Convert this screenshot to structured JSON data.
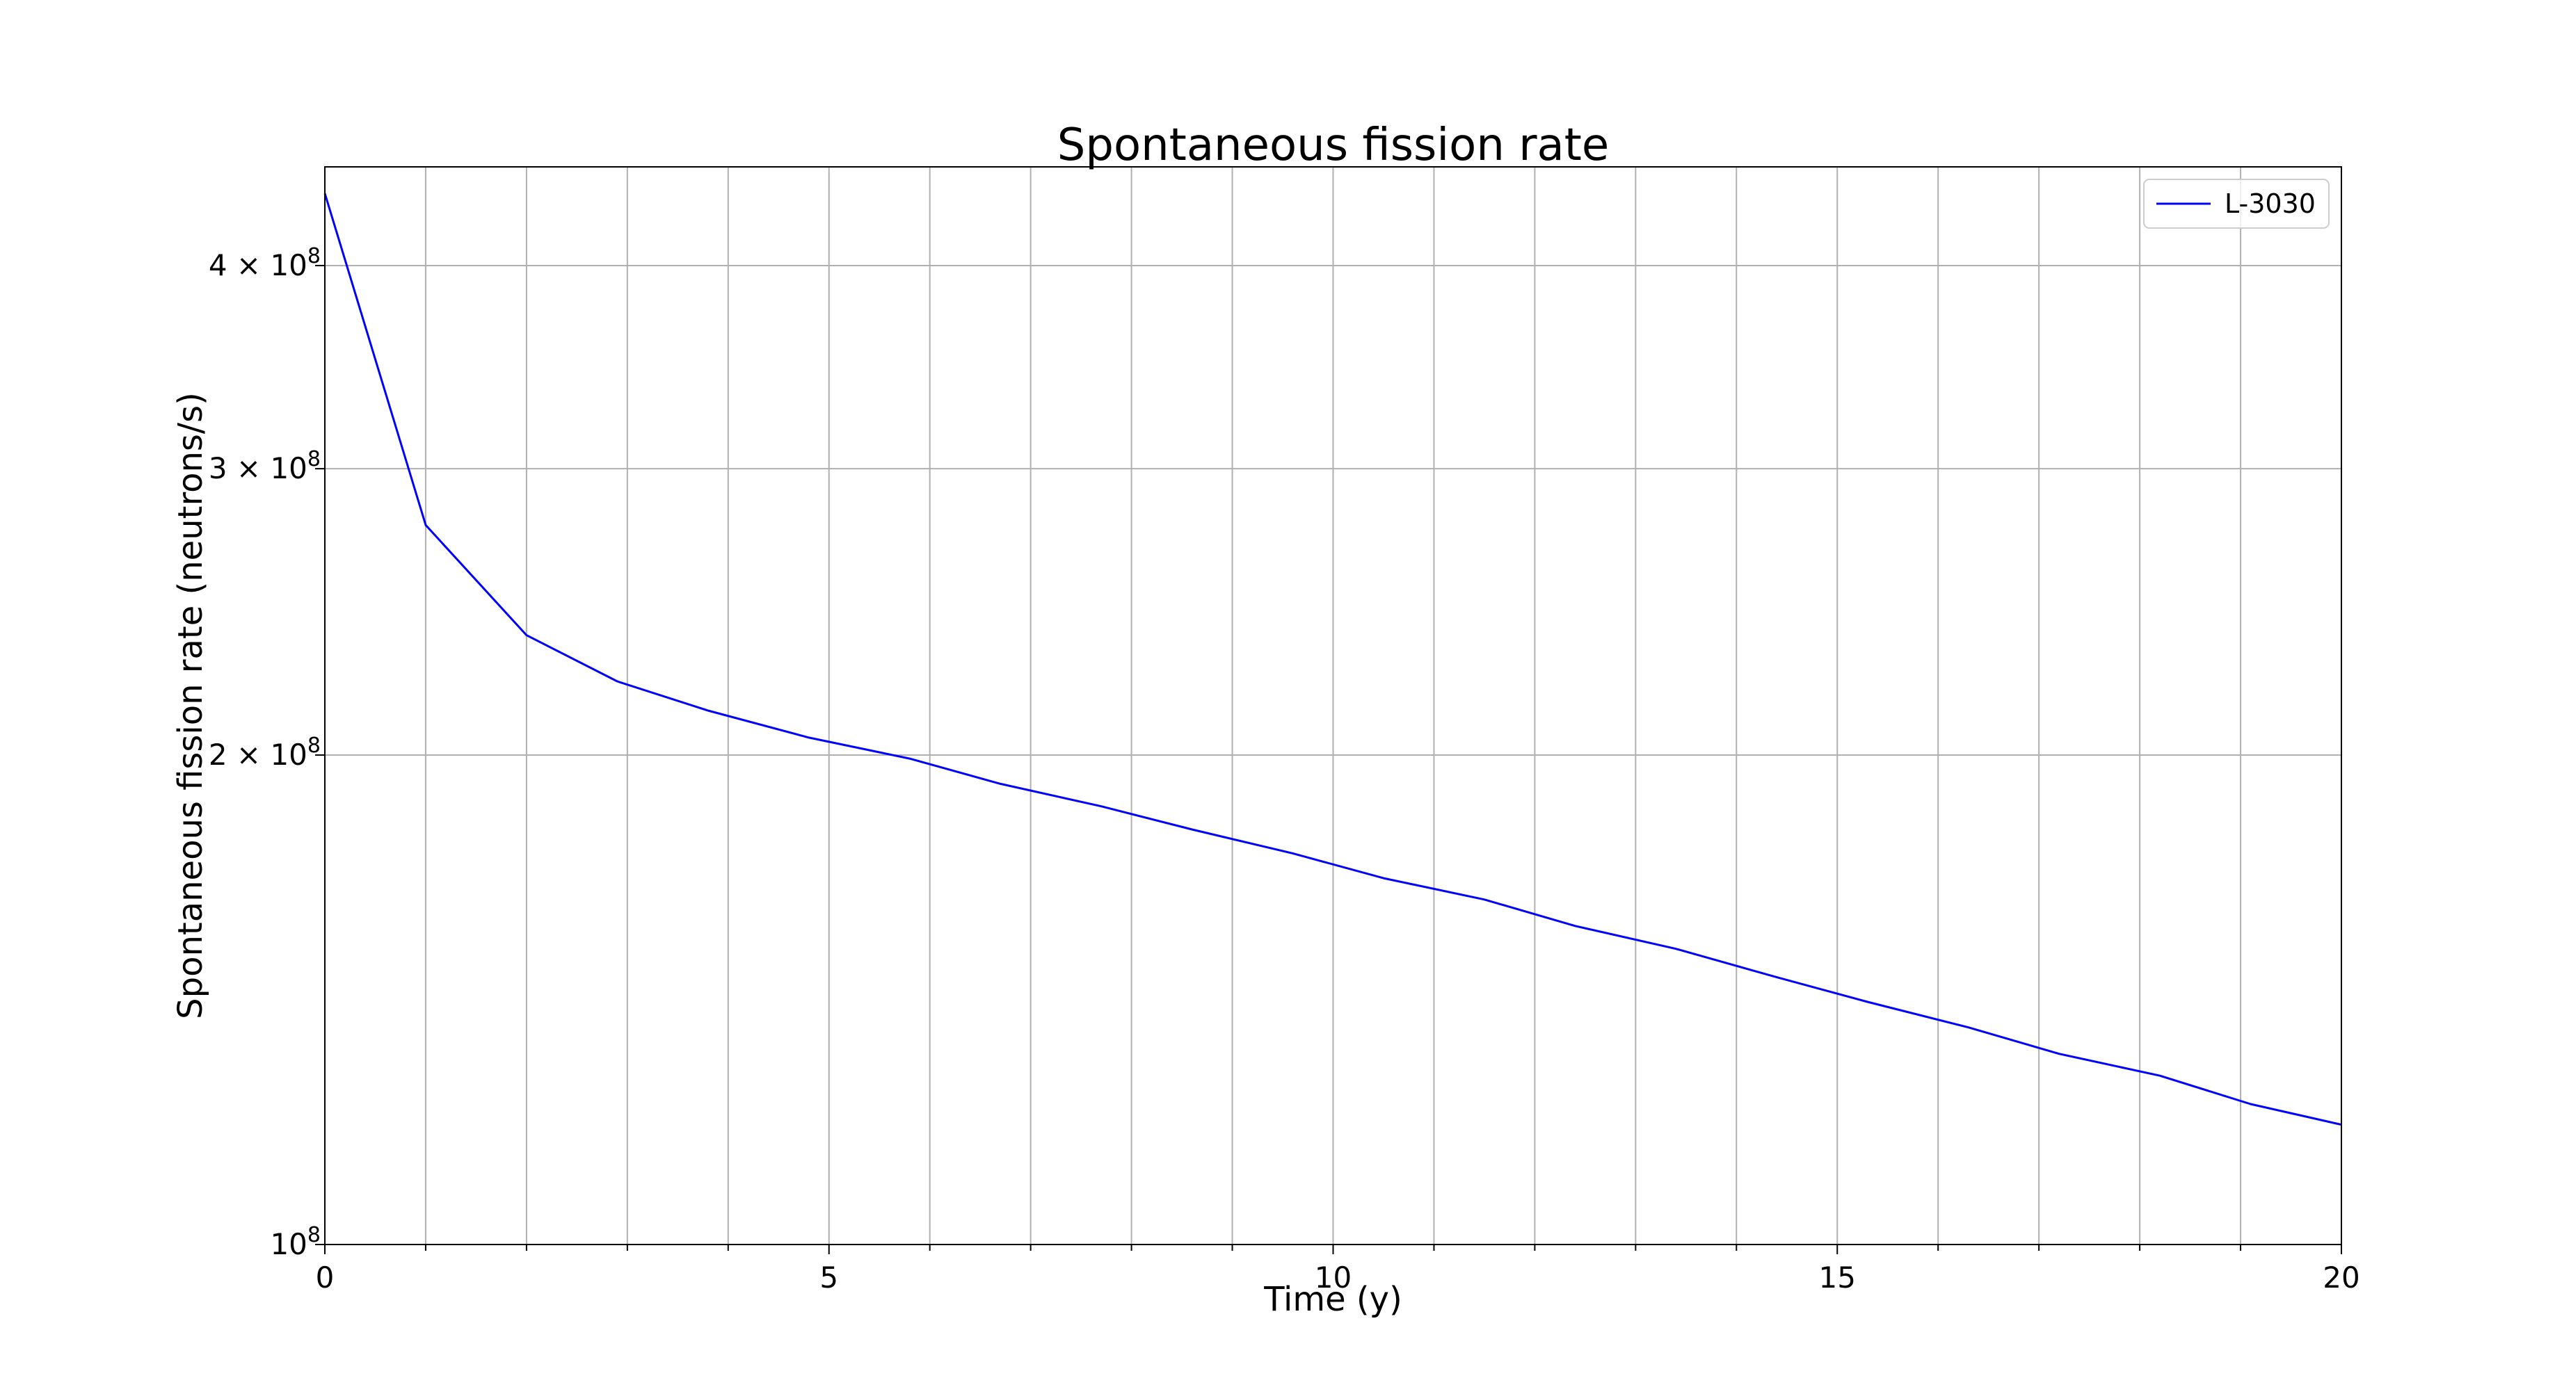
{
  "chart_data": {
    "type": "line",
    "title": "Spontaneous fission rate",
    "xlabel": "Time (y)",
    "ylabel": "Spontaneous fission rate (neutrons/s)",
    "xlim": [
      0,
      20
    ],
    "ylim": [
      100000000,
      460000000
    ],
    "y_scale": "log",
    "grid": true,
    "legend_position": "upper right",
    "x_ticks": [
      {
        "value": 0,
        "label": "0"
      },
      {
        "value": 5,
        "label": "5"
      },
      {
        "value": 10,
        "label": "10"
      },
      {
        "value": 15,
        "label": "15"
      },
      {
        "value": 20,
        "label": "20"
      }
    ],
    "x_minor_gridlines": [
      1,
      2,
      3,
      4,
      6,
      7,
      8,
      9,
      11,
      12,
      13,
      14,
      16,
      17,
      18,
      19
    ],
    "y_ticks": [
      {
        "value": 100000000,
        "base": "10",
        "exp": "8"
      },
      {
        "value": 200000000,
        "base": "2 × 10",
        "exp": "8"
      },
      {
        "value": 300000000,
        "base": "3 × 10",
        "exp": "8"
      },
      {
        "value": 400000000,
        "base": "4 × 10",
        "exp": "8"
      }
    ],
    "series": [
      {
        "name": "L-3030",
        "color": "#0000ff",
        "x": [
          0,
          1,
          2,
          2.9,
          3.8,
          4.8,
          5.8,
          6.7,
          7.7,
          8.6,
          9.6,
          10.5,
          11.5,
          12.4,
          13.4,
          14.4,
          15.3,
          16.3,
          17.2,
          18.2,
          19.1,
          20
        ],
        "y": [
          443000000,
          277000000,
          237000000,
          222000000,
          213000000,
          205000000,
          199000000,
          192000000,
          186000000,
          180000000,
          174000000,
          168000000,
          163000000,
          157000000,
          152000000,
          146000000,
          141000000,
          136000000,
          131000000,
          127000000,
          122000000,
          118500000
        ]
      }
    ]
  }
}
